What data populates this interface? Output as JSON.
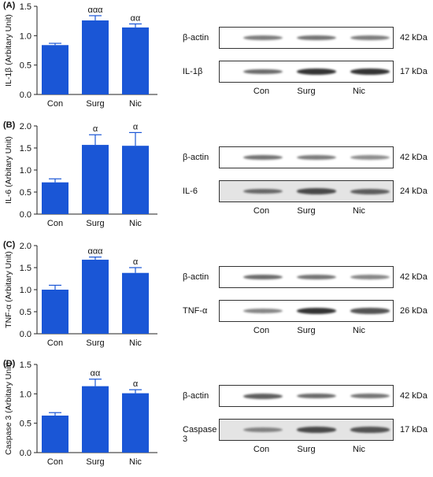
{
  "colors": {
    "bar": "#1a56d6",
    "error": "#1a56d6",
    "axis": "#222222"
  },
  "chart_data": [
    {
      "panel": "(A)",
      "type": "bar",
      "categories": [
        "Con",
        "Surg",
        "Nic"
      ],
      "values": [
        0.84,
        1.26,
        1.14
      ],
      "errors": [
        0.03,
        0.08,
        0.06
      ],
      "significance": [
        "",
        "ααα",
        "αα"
      ],
      "ylabel": "IL-1β (Arbitary Unit)",
      "ylim": [
        0,
        1.5
      ],
      "yticks": [
        "0.0",
        "0.5",
        "1.0",
        "1.5"
      ],
      "blot": [
        {
          "label": "β-actin",
          "kda": "42 kDa",
          "intensity": [
            0.6,
            0.65,
            0.6
          ],
          "bg": "#ffffff"
        },
        {
          "label": "IL-1β",
          "kda": "17 kDa",
          "intensity": [
            0.7,
            0.95,
            0.95
          ],
          "bg": "#ffffff"
        }
      ]
    },
    {
      "panel": "(B)",
      "type": "bar",
      "categories": [
        "Con",
        "Surg",
        "Nic"
      ],
      "values": [
        0.72,
        1.57,
        1.55
      ],
      "errors": [
        0.08,
        0.23,
        0.3
      ],
      "significance": [
        "",
        "α",
        "α"
      ],
      "ylabel": "IL-6 (Arbitary Unit)",
      "ylim": [
        0,
        2.0
      ],
      "yticks": [
        "0.0",
        "0.5",
        "1.0",
        "1.5",
        "2.0"
      ],
      "blot": [
        {
          "label": "β-actin",
          "kda": "42 kDa",
          "intensity": [
            0.65,
            0.6,
            0.5
          ],
          "bg": "#ffffff"
        },
        {
          "label": "IL-6",
          "kda": "24 kDa",
          "intensity": [
            0.7,
            0.85,
            0.75
          ],
          "bg": "#e4e4e4"
        }
      ]
    },
    {
      "panel": "(C)",
      "type": "bar",
      "categories": [
        "Con",
        "Surg",
        "Nic"
      ],
      "values": [
        1.0,
        1.68,
        1.38
      ],
      "errors": [
        0.1,
        0.06,
        0.12
      ],
      "significance": [
        "",
        "ααα",
        "α"
      ],
      "ylabel": "TNF-α (Arbitary Unit)",
      "ylim": [
        0,
        2.0
      ],
      "yticks": [
        "0.0",
        "0.5",
        "1.0",
        "1.5",
        "2.0"
      ],
      "blot": [
        {
          "label": "β-actin",
          "kda": "42 kDa",
          "intensity": [
            0.7,
            0.65,
            0.55
          ],
          "bg": "#ffffff"
        },
        {
          "label": "TNF-α",
          "kda": "26 kDa",
          "intensity": [
            0.55,
            0.95,
            0.8
          ],
          "bg": "#ffffff"
        }
      ]
    },
    {
      "panel": "(D)",
      "type": "bar",
      "categories": [
        "Con",
        "Surg",
        "Nic"
      ],
      "values": [
        0.63,
        1.13,
        1.01
      ],
      "errors": [
        0.05,
        0.12,
        0.06
      ],
      "significance": [
        "",
        "αα",
        "α"
      ],
      "ylabel": "Caspase 3 (Arbitary Unit)",
      "ylim": [
        0,
        1.5
      ],
      "yticks": [
        "0.0",
        "0.5",
        "1.0",
        "1.5"
      ],
      "blot": [
        {
          "label": "β-actin",
          "kda": "42 kDa",
          "intensity": [
            0.75,
            0.7,
            0.65
          ],
          "bg": "#ffffff"
        },
        {
          "label": "Caspase 3",
          "kda": "17 kDa",
          "intensity": [
            0.55,
            0.85,
            0.8
          ],
          "bg": "#e4e4e4"
        }
      ]
    }
  ]
}
